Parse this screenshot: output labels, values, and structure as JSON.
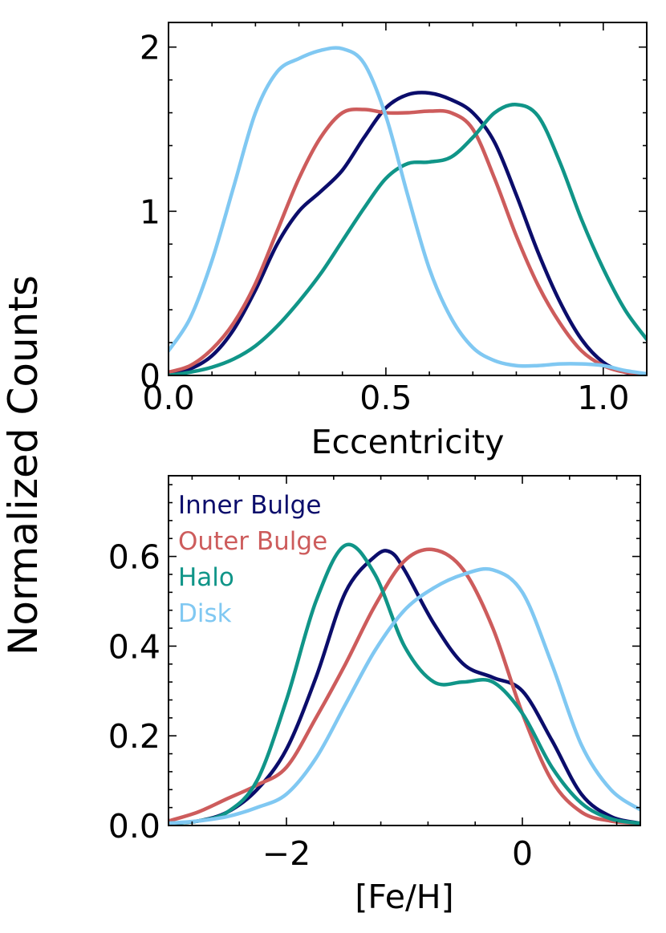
{
  "shared_ylabel": "Normalized Counts",
  "colors": {
    "inner_bulge": "#0b0d6b",
    "outer_bulge": "#cd5c5c",
    "halo": "#109588",
    "disk": "#80c8f2"
  },
  "chart_data": [
    {
      "type": "line",
      "title": "",
      "xlabel": "Eccentricity",
      "ylabel": "Normalized Counts",
      "xlim": [
        0.0,
        1.1
      ],
      "ylim": [
        0,
        2.15
      ],
      "xticks": [
        0.0,
        0.5,
        1.0
      ],
      "xtick_labels": [
        "0.0",
        "0.5",
        "1.0"
      ],
      "yticks": [
        0,
        1,
        2
      ],
      "ytick_labels": [
        "0",
        "1",
        "2"
      ],
      "legend": false,
      "series": [
        {
          "name": "Inner Bulge",
          "color": "#0b0d6b",
          "x": [
            0.0,
            0.05,
            0.1,
            0.15,
            0.2,
            0.25,
            0.3,
            0.35,
            0.4,
            0.45,
            0.5,
            0.55,
            0.6,
            0.65,
            0.7,
            0.75,
            0.8,
            0.85,
            0.9,
            0.95,
            1.0,
            1.05,
            1.1
          ],
          "y": [
            0.01,
            0.04,
            0.12,
            0.28,
            0.52,
            0.8,
            1.0,
            1.12,
            1.25,
            1.45,
            1.63,
            1.71,
            1.72,
            1.68,
            1.6,
            1.42,
            1.1,
            0.75,
            0.45,
            0.22,
            0.08,
            0.02,
            0.0
          ]
        },
        {
          "name": "Outer Bulge",
          "color": "#cd5c5c",
          "x": [
            0.0,
            0.05,
            0.1,
            0.15,
            0.2,
            0.25,
            0.3,
            0.35,
            0.4,
            0.45,
            0.5,
            0.55,
            0.6,
            0.65,
            0.7,
            0.75,
            0.8,
            0.85,
            0.9,
            0.95,
            1.0,
            1.05,
            1.1
          ],
          "y": [
            0.02,
            0.06,
            0.16,
            0.32,
            0.56,
            0.88,
            1.2,
            1.45,
            1.6,
            1.62,
            1.6,
            1.6,
            1.61,
            1.6,
            1.5,
            1.2,
            0.85,
            0.55,
            0.32,
            0.15,
            0.06,
            0.02,
            0.01
          ]
        },
        {
          "name": "Halo",
          "color": "#109588",
          "x": [
            0.0,
            0.05,
            0.1,
            0.15,
            0.2,
            0.25,
            0.3,
            0.35,
            0.4,
            0.45,
            0.5,
            0.55,
            0.6,
            0.65,
            0.7,
            0.75,
            0.8,
            0.85,
            0.9,
            0.95,
            1.0,
            1.05,
            1.1
          ],
          "y": [
            0.0,
            0.02,
            0.05,
            0.1,
            0.18,
            0.3,
            0.45,
            0.62,
            0.82,
            1.02,
            1.2,
            1.29,
            1.3,
            1.33,
            1.45,
            1.6,
            1.65,
            1.58,
            1.3,
            0.95,
            0.65,
            0.4,
            0.22
          ]
        },
        {
          "name": "Disk",
          "color": "#80c8f2",
          "x": [
            0.0,
            0.05,
            0.1,
            0.15,
            0.2,
            0.25,
            0.3,
            0.35,
            0.4,
            0.45,
            0.5,
            0.55,
            0.6,
            0.65,
            0.7,
            0.75,
            0.8,
            0.85,
            0.9,
            0.95,
            1.0,
            1.05,
            1.1
          ],
          "y": [
            0.15,
            0.35,
            0.7,
            1.15,
            1.6,
            1.85,
            1.93,
            1.98,
            1.99,
            1.9,
            1.58,
            1.1,
            0.65,
            0.35,
            0.17,
            0.09,
            0.06,
            0.06,
            0.07,
            0.07,
            0.06,
            0.03,
            0.01
          ]
        }
      ]
    },
    {
      "type": "line",
      "title": "",
      "xlabel": "[Fe/H]",
      "ylabel": "Normalized Counts",
      "xlim": [
        -3.0,
        1.0
      ],
      "ylim": [
        0.0,
        0.78
      ],
      "xticks": [
        -2,
        0
      ],
      "xtick_labels": [
        "−2",
        "0"
      ],
      "yticks": [
        0.0,
        0.2,
        0.4,
        0.6
      ],
      "ytick_labels": [
        "0.0",
        "0.2",
        "0.4",
        "0.6"
      ],
      "legend": true,
      "legend_position": "top-left",
      "series": [
        {
          "name": "Inner Bulge",
          "color": "#0b0d6b",
          "x": [
            -3.0,
            -2.75,
            -2.5,
            -2.25,
            -2.0,
            -1.75,
            -1.5,
            -1.25,
            -1.12,
            -1.0,
            -0.75,
            -0.5,
            -0.25,
            0.0,
            0.25,
            0.5,
            0.75,
            1.0
          ],
          "y": [
            0.005,
            0.01,
            0.03,
            0.08,
            0.17,
            0.33,
            0.52,
            0.6,
            0.61,
            0.57,
            0.45,
            0.36,
            0.33,
            0.3,
            0.19,
            0.07,
            0.02,
            0.005
          ]
        },
        {
          "name": "Outer Bulge",
          "color": "#cd5c5c",
          "x": [
            -3.0,
            -2.75,
            -2.5,
            -2.25,
            -2.0,
            -1.75,
            -1.5,
            -1.25,
            -1.0,
            -0.75,
            -0.5,
            -0.25,
            0.0,
            0.25,
            0.5,
            0.75,
            1.0
          ],
          "y": [
            0.01,
            0.03,
            0.06,
            0.09,
            0.13,
            0.24,
            0.36,
            0.49,
            0.59,
            0.615,
            0.57,
            0.44,
            0.25,
            0.1,
            0.03,
            0.01,
            0.005
          ]
        },
        {
          "name": "Halo",
          "color": "#109588",
          "x": [
            -3.0,
            -2.75,
            -2.5,
            -2.25,
            -2.0,
            -1.75,
            -1.5,
            -1.25,
            -1.0,
            -0.75,
            -0.5,
            -0.25,
            0.0,
            0.25,
            0.5,
            0.75,
            1.0
          ],
          "y": [
            0.005,
            0.01,
            0.03,
            0.1,
            0.28,
            0.5,
            0.625,
            0.56,
            0.4,
            0.32,
            0.32,
            0.32,
            0.25,
            0.13,
            0.05,
            0.015,
            0.005
          ]
        },
        {
          "name": "Disk",
          "color": "#80c8f2",
          "x": [
            -3.0,
            -2.75,
            -2.5,
            -2.25,
            -2.0,
            -1.75,
            -1.5,
            -1.25,
            -1.0,
            -0.75,
            -0.5,
            -0.25,
            0.0,
            0.25,
            0.5,
            0.75,
            1.0
          ],
          "y": [
            0.005,
            0.01,
            0.02,
            0.04,
            0.07,
            0.15,
            0.27,
            0.39,
            0.48,
            0.53,
            0.56,
            0.57,
            0.52,
            0.36,
            0.18,
            0.08,
            0.035
          ]
        }
      ]
    }
  ]
}
